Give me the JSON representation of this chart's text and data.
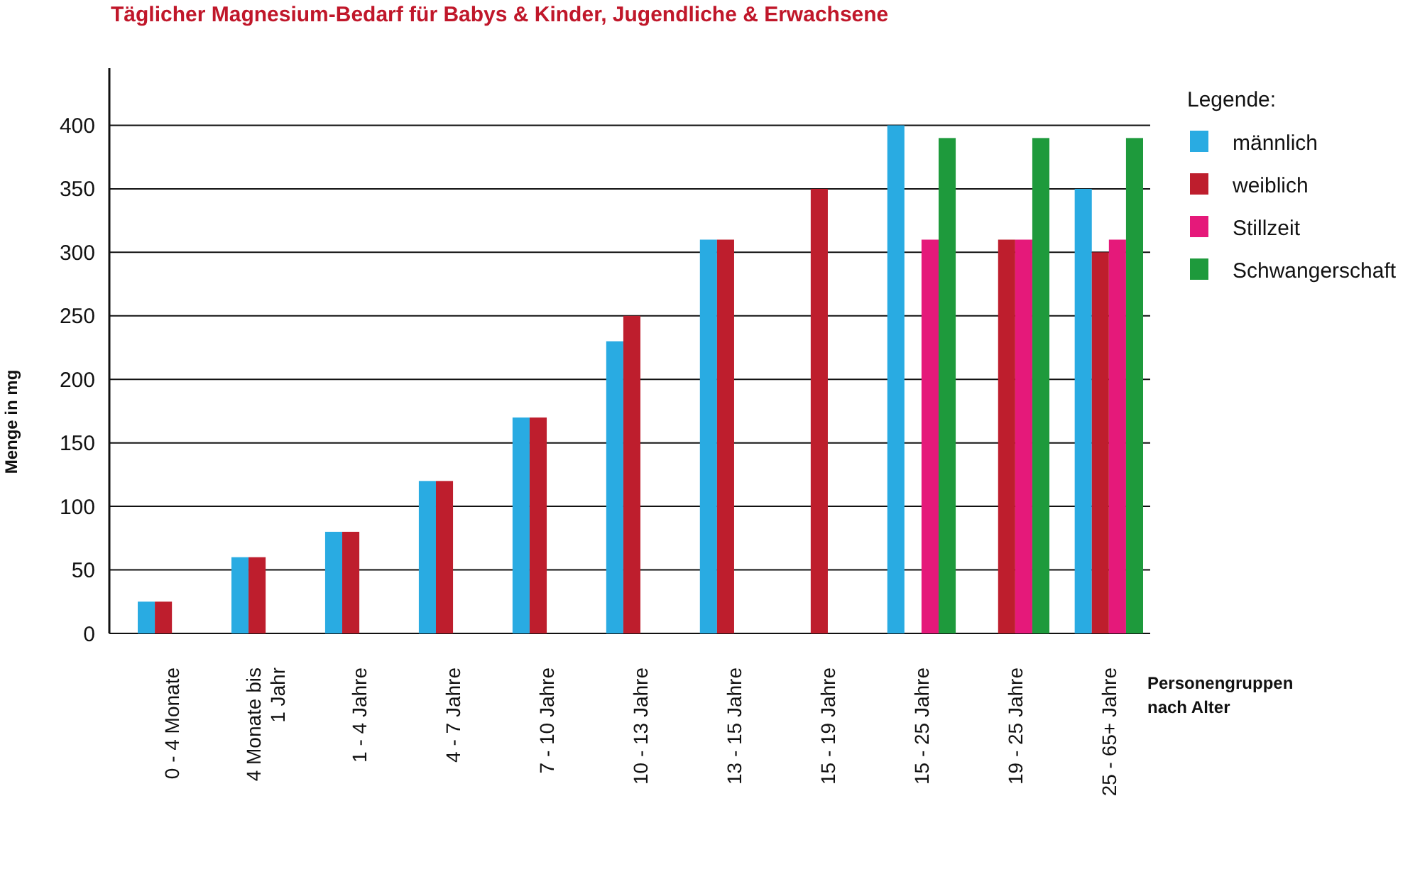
{
  "chart_data": {
    "type": "bar",
    "title": "Täglicher Magnesium-Bedarf für Babys & Kinder, Jugendliche & Erwachsene",
    "xlabel": "Personengruppen nach Alter",
    "ylabel": "Menge in mg",
    "legend_title": "Legende:",
    "categories": [
      "0 - 4 Monate",
      "4 Monate bis 1 Jahr",
      "1 - 4 Jahre",
      "4 - 7 Jahre",
      "7 - 10 Jahre",
      "10 - 13 Jahre",
      "13 - 15 Jahre",
      "15 - 19 Jahre",
      "15 - 25 Jahre",
      "19 - 25 Jahre",
      "25 - 65+ Jahre"
    ],
    "series": [
      {
        "name": "männlich",
        "color": "#29abe2",
        "values": [
          25,
          60,
          80,
          120,
          170,
          230,
          310,
          null,
          400,
          null,
          350
        ]
      },
      {
        "name": "weiblich",
        "color": "#be1e2d",
        "values": [
          25,
          60,
          80,
          120,
          170,
          250,
          310,
          350,
          null,
          310,
          300
        ]
      },
      {
        "name": "Stillzeit",
        "color": "#e5197a",
        "values": [
          null,
          null,
          null,
          null,
          null,
          null,
          null,
          null,
          310,
          310,
          310
        ]
      },
      {
        "name": "Schwangerschaft",
        "color": "#1e9a3c",
        "values": [
          null,
          null,
          null,
          null,
          null,
          null,
          null,
          null,
          390,
          390,
          390
        ]
      }
    ],
    "ylim": [
      0,
      445
    ],
    "yticks": [
      0,
      50,
      100,
      150,
      200,
      250,
      300,
      350,
      400
    ],
    "grid": "y",
    "legend": "top right"
  }
}
